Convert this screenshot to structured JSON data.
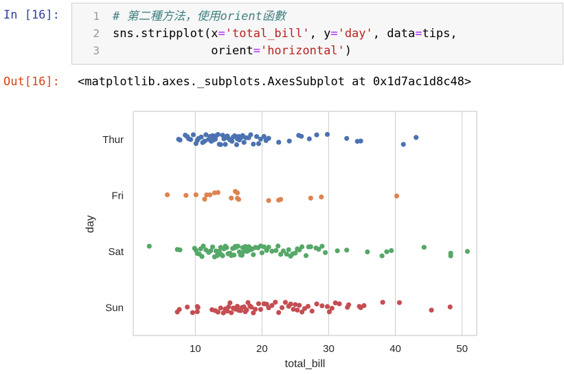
{
  "input_prompt": "In [16]:",
  "output_prompt": "Out[16]:",
  "code": {
    "line_numbers": [
      "1",
      "2",
      "3"
    ],
    "comment": "# 第二種方法，使用orient函數",
    "line2_pre": "sns.stripplot(x",
    "line2_eq1": "=",
    "line2_str1": "'total_bill'",
    "line2_mid1": ", y",
    "line2_eq2": "=",
    "line2_str2": "'day'",
    "line2_mid2": ", data",
    "line2_eq3": "=",
    "line2_post": "tips,",
    "line3_pre": "              orient",
    "line3_eq": "=",
    "line3_str": "'horizontal'",
    "line3_post": ")"
  },
  "output_text": "<matplotlib.axes._subplots.AxesSubplot at 0x1d7ac1d8c48>",
  "colors": {
    "Thur": "#4c72b0",
    "Fri": "#dd8452",
    "Sat": "#55a868",
    "Sun": "#c44e52"
  },
  "chart_data": {
    "type": "scatter",
    "xlabel": "total_bill",
    "ylabel": "day",
    "xlim": [
      0.7,
      52.2
    ],
    "xticks": [
      10,
      20,
      30,
      40,
      50
    ],
    "categories": [
      "Thur",
      "Fri",
      "Sat",
      "Sun"
    ],
    "grid": "vertical",
    "series": [
      {
        "name": "Thur",
        "values": [
          7.5,
          7.7,
          8.5,
          8.8,
          9.0,
          9.3,
          9.7,
          10.1,
          10.3,
          10.5,
          10.9,
          11.1,
          11.4,
          11.6,
          12.0,
          12.2,
          12.4,
          12.6,
          12.7,
          13.0,
          13.1,
          13.4,
          13.6,
          13.8,
          14.1,
          14.3,
          14.5,
          14.8,
          15.0,
          15.2,
          15.5,
          15.7,
          15.9,
          16.2,
          16.3,
          16.5,
          16.6,
          16.9,
          17.1,
          17.3,
          17.6,
          18.0,
          18.3,
          18.7,
          19.2,
          19.5,
          19.8,
          20.3,
          20.6,
          21.0,
          22.5,
          24.1,
          25.5,
          25.9,
          27.1,
          28.2,
          29.8,
          32.7,
          34.3,
          34.8,
          41.2,
          43.1
        ]
      },
      {
        "name": "Fri",
        "values": [
          5.8,
          8.6,
          10.1,
          11.4,
          11.7,
          12.2,
          12.9,
          13.4,
          15.4,
          16.0,
          16.3,
          16.3,
          16.5,
          21.0,
          22.5,
          22.8,
          27.3,
          28.9,
          40.2
        ]
      },
      {
        "name": "Sat",
        "values": [
          3.1,
          7.3,
          7.7,
          9.9,
          10.1,
          10.3,
          10.6,
          10.8,
          11.0,
          11.2,
          11.6,
          12.0,
          12.3,
          12.6,
          12.9,
          13.1,
          13.3,
          13.4,
          13.6,
          13.8,
          13.9,
          14.1,
          14.3,
          14.5,
          14.7,
          14.9,
          15.0,
          15.2,
          15.4,
          15.6,
          15.8,
          15.9,
          16.0,
          16.2,
          16.4,
          16.6,
          16.8,
          17.0,
          17.1,
          17.3,
          17.5,
          17.6,
          17.8,
          18.0,
          18.2,
          18.3,
          18.5,
          18.7,
          19.0,
          19.4,
          19.8,
          20.0,
          20.3,
          20.7,
          21.0,
          21.5,
          22.1,
          22.4,
          22.8,
          23.2,
          23.7,
          24.0,
          24.3,
          24.6,
          25.0,
          25.3,
          25.6,
          26.0,
          26.6,
          27.0,
          27.3,
          28.1,
          28.5,
          29.0,
          29.5,
          31.3,
          32.7,
          35.8,
          38.0,
          38.7,
          39.4,
          44.3,
          48.3,
          48.3,
          50.8
        ]
      },
      {
        "name": "Sun",
        "values": [
          7.3,
          7.6,
          8.8,
          9.6,
          10.3,
          10.3,
          10.4,
          12.5,
          13.0,
          13.4,
          13.8,
          14.2,
          14.5,
          14.8,
          15.0,
          15.2,
          15.4,
          15.7,
          16.0,
          16.3,
          16.5,
          16.8,
          17.0,
          17.3,
          17.5,
          17.7,
          17.9,
          18.2,
          18.4,
          18.7,
          19.0,
          19.5,
          19.8,
          20.3,
          20.7,
          21.0,
          21.5,
          22.0,
          22.5,
          23.0,
          23.5,
          24.0,
          24.3,
          24.7,
          25.0,
          25.3,
          25.6,
          26.0,
          26.4,
          26.9,
          27.5,
          28.2,
          29.0,
          29.8,
          30.1,
          30.5,
          31.0,
          31.6,
          32.8,
          33.0,
          34.6,
          34.8,
          35.3,
          38.1,
          40.6,
          45.4,
          48.2
        ]
      }
    ]
  }
}
